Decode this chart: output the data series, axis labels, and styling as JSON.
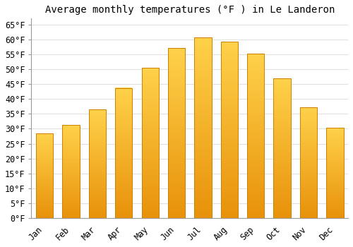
{
  "title": "Average monthly temperatures (°F ) in Le Landeron",
  "months": [
    "Jan",
    "Feb",
    "Mar",
    "Apr",
    "May",
    "Jun",
    "Jul",
    "Aug",
    "Sep",
    "Oct",
    "Nov",
    "Dec"
  ],
  "values": [
    28.4,
    31.3,
    36.5,
    43.7,
    50.5,
    57.0,
    60.6,
    59.2,
    55.2,
    46.9,
    37.2,
    30.4
  ],
  "bar_color_bottom": "#E8920A",
  "bar_color_top": "#FFD04A",
  "bar_color_edge": "#CC8000",
  "ylim": [
    0,
    67
  ],
  "yticks": [
    0,
    5,
    10,
    15,
    20,
    25,
    30,
    35,
    40,
    45,
    50,
    55,
    60,
    65
  ],
  "ytick_labels": [
    "0°F",
    "5°F",
    "10°F",
    "15°F",
    "20°F",
    "25°F",
    "30°F",
    "35°F",
    "40°F",
    "45°F",
    "50°F",
    "55°F",
    "60°F",
    "65°F"
  ],
  "background_color": "#ffffff",
  "grid_color": "#e0e0e0",
  "title_fontsize": 10,
  "tick_fontsize": 8.5,
  "bar_width": 0.65
}
